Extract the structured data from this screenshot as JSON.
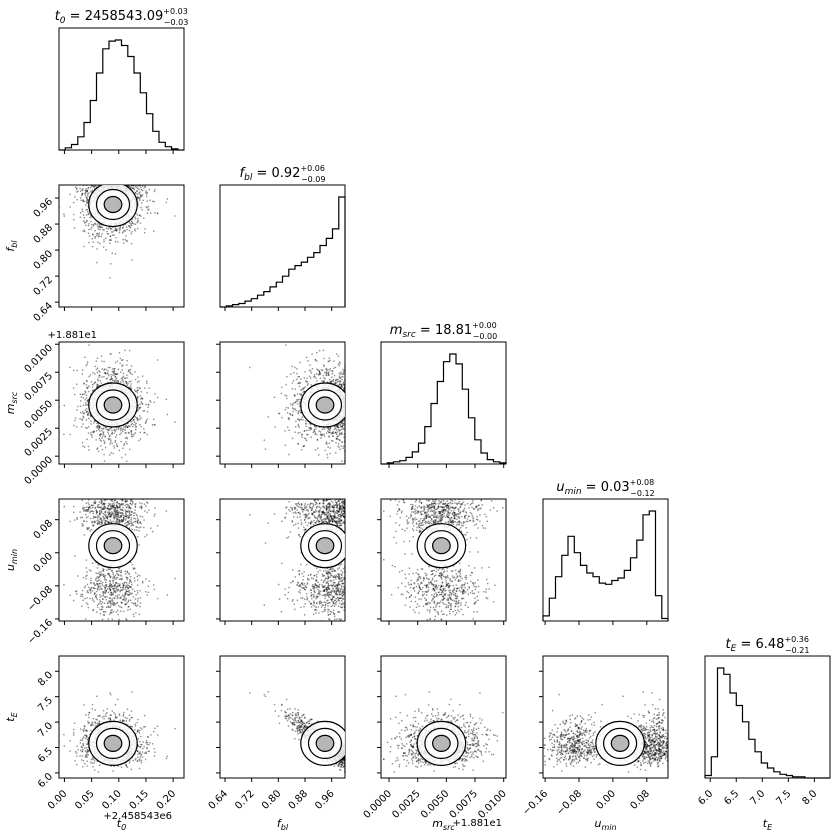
{
  "chart_data": {
    "type": "scatter",
    "subtype": "corner-plot",
    "parameters": [
      {
        "key": "t0",
        "label_main": "t",
        "label_sub": "0",
        "title_value": "2458543.09",
        "title_plus": "+0.03",
        "title_minus": "−0.03",
        "ticks": [
          "0.00",
          "0.05",
          "0.10",
          "0.15",
          "0.20"
        ],
        "tick_values": [
          0.0,
          0.05,
          0.1,
          0.15,
          0.2
        ],
        "range": [
          -0.01,
          0.22
        ],
        "offset_label": "+2.458543e6"
      },
      {
        "key": "fbl",
        "label_main": "f",
        "label_sub": "bl",
        "title_value": "0.92",
        "title_plus": "+0.06",
        "title_minus": "−0.09",
        "ticks": [
          "0.64",
          "0.72",
          "0.80",
          "0.88",
          "0.96"
        ],
        "tick_values": [
          0.64,
          0.72,
          0.8,
          0.88,
          0.96
        ],
        "range": [
          0.625,
          1.0
        ],
        "offset_label": ""
      },
      {
        "key": "msrc",
        "label_main": "m",
        "label_sub": "src",
        "title_value": "18.81",
        "title_plus": "+0.00",
        "title_minus": "−0.00",
        "ticks": [
          "0.0000",
          "0.0025",
          "0.0050",
          "0.0075",
          "0.0100"
        ],
        "tick_values": [
          0.0,
          0.0025,
          0.005,
          0.0075,
          0.01
        ],
        "range": [
          -0.0007,
          0.0102
        ],
        "offset_label": "+1.881e1"
      },
      {
        "key": "umin",
        "label_main": "u",
        "label_sub": "min",
        "title_value": "0.03",
        "title_plus": "+0.08",
        "title_minus": "−0.12",
        "ticks": [
          "−0.16",
          "−0.08",
          "0.00",
          "0.08"
        ],
        "tick_values": [
          -0.16,
          -0.08,
          0.0,
          0.08
        ],
        "range": [
          -0.165,
          0.13
        ],
        "offset_label": ""
      },
      {
        "key": "tE",
        "label_main": "t",
        "label_sub": "E",
        "title_value": "6.48",
        "title_plus": "+0.36",
        "title_minus": "−0.21",
        "ticks": [
          "6.0",
          "6.5",
          "7.0",
          "7.5",
          "8.0"
        ],
        "tick_values": [
          6.0,
          6.5,
          7.0,
          7.5,
          8.0
        ],
        "range": [
          5.9,
          8.3
        ],
        "offset_label": ""
      }
    ],
    "histograms": {
      "t0": [
        0,
        2,
        5,
        12,
        25,
        45,
        70,
        92,
        99,
        100,
        95,
        85,
        70,
        52,
        33,
        17,
        7,
        3,
        1,
        0
      ],
      "fbl": [
        0,
        1,
        2,
        3,
        5,
        7,
        10,
        13,
        17,
        21,
        26,
        32,
        35,
        38,
        42,
        46,
        52,
        58,
        66,
        93
      ],
      "msrc": [
        0,
        1,
        2,
        3,
        6,
        11,
        19,
        34,
        55,
        75,
        93,
        100,
        91,
        68,
        42,
        22,
        10,
        4,
        2,
        1
      ],
      "umin": [
        4,
        18,
        35,
        52,
        67,
        54,
        44,
        38,
        35,
        30,
        29,
        32,
        34,
        40,
        50,
        64,
        84,
        87,
        20,
        2
      ],
      "tE": [
        2,
        17,
        88,
        83,
        68,
        58,
        45,
        31,
        21,
        12,
        8,
        5,
        3,
        2,
        1,
        1,
        0,
        0,
        0,
        0
      ]
    },
    "samples": 1200
  }
}
